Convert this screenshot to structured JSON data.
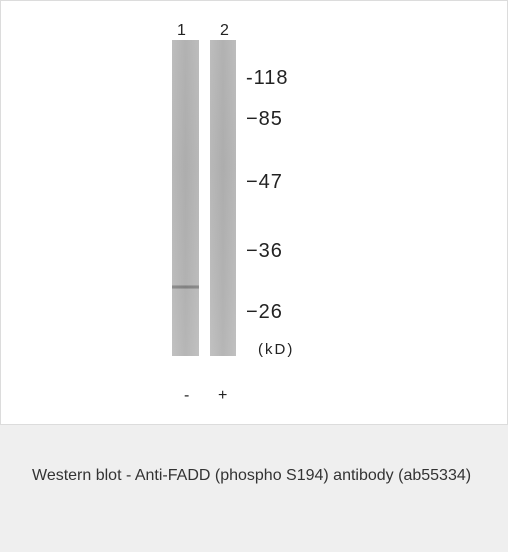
{
  "figure": {
    "lanes": [
      {
        "number": "1",
        "treatment": "-"
      },
      {
        "number": "2",
        "treatment": "+"
      }
    ],
    "markers": [
      "-118",
      "−85",
      "−47",
      "−36",
      "−26"
    ],
    "unit_label": "(kD)"
  },
  "caption": {
    "text": "Western blot - Anti-FADD (phospho S194) antibody (ab55334)"
  }
}
